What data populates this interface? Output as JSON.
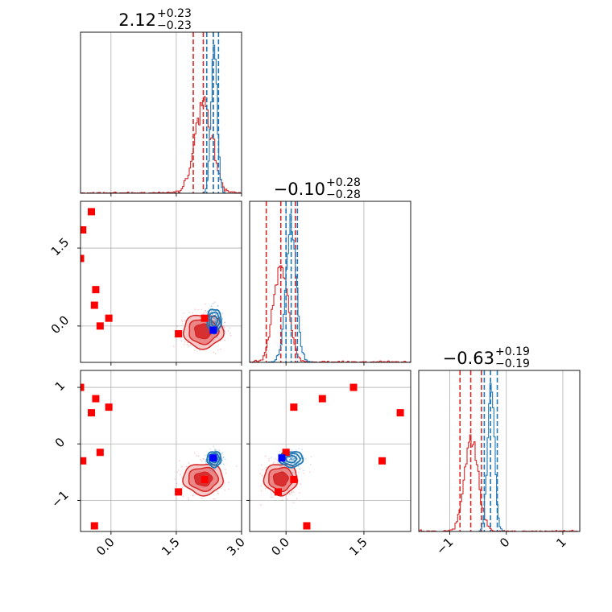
{
  "chart_data": {
    "type": "corner",
    "parameters": [
      {
        "title": "2.12",
        "plus": "+0.23",
        "minus": "−0.23",
        "range": [
          -0.7,
          3.0
        ]
      },
      {
        "title": "−0.10",
        "plus": "+0.28",
        "minus": "−0.28",
        "range": [
          -0.7,
          2.4
        ]
      },
      {
        "title": "−0.63",
        "plus": "+0.19",
        "minus": "−0.19",
        "range": [
          -1.55,
          1.3
        ]
      }
    ],
    "ticks": {
      "p0": {
        "values": [
          0.0,
          1.5,
          3.0
        ],
        "labels": [
          "0.0",
          "1.5",
          "3.0"
        ]
      },
      "p1": {
        "values": [
          0.0,
          1.5
        ],
        "labels": [
          "0.0",
          "1.5"
        ]
      },
      "p2": {
        "values": [
          -1,
          0,
          1
        ],
        "labels": [
          "−1",
          "0",
          "1"
        ]
      }
    },
    "series": [
      {
        "color": "#d62728",
        "hist_p0": {
          "quantiles": [
            1.89,
            2.12,
            2.35
          ],
          "mean": 2.12,
          "sd": 0.2
        },
        "hist_p1": {
          "quantiles": [
            -0.38,
            -0.1,
            0.18
          ],
          "mean": -0.1,
          "sd": 0.14
        },
        "hist_p2": {
          "quantiles": [
            -0.82,
            -0.63,
            -0.44
          ],
          "mean": -0.62,
          "sd": 0.12
        },
        "filled_contours": true
      },
      {
        "color": "#1f77b4",
        "hist_p0": {
          "quantiles": [
            2.2,
            2.35,
            2.47
          ],
          "mean": 2.37,
          "sd": 0.07
        },
        "hist_p1": {
          "quantiles": [
            0.0,
            0.1,
            0.22
          ],
          "mean": 0.1,
          "sd": 0.1
        },
        "hist_p2": {
          "quantiles": [
            -0.39,
            -0.28,
            -0.16
          ],
          "mean": -0.27,
          "sd": 0.06
        },
        "filled_contours": false
      }
    ],
    "markers": {
      "red_squares": [
        {
          "p0": -0.25,
          "p1": 0.0,
          "p2": -0.15
        },
        {
          "p0": -0.45,
          "p1": 2.2,
          "p2": 0.55
        },
        {
          "p0": -0.65,
          "p1": 1.85,
          "p2": -0.3
        },
        {
          "p0": -0.7,
          "p1": 1.3,
          "p2": 1.0
        },
        {
          "p0": -0.38,
          "p1": 0.4,
          "p2": -1.45
        },
        {
          "p0": -0.35,
          "p1": 0.7,
          "p2": 0.8
        },
        {
          "p0": -0.05,
          "p1": 0.15,
          "p2": 0.65
        },
        {
          "p0": 1.55,
          "p1": -0.15,
          "p2": -0.85
        },
        {
          "p0": 2.15,
          "p1": 0.15,
          "p2": -0.63
        }
      ],
      "blue_squares": [
        {
          "p0": 2.35,
          "p1": -0.08,
          "p2": -0.25
        }
      ]
    },
    "grid": true,
    "legend": "none"
  }
}
